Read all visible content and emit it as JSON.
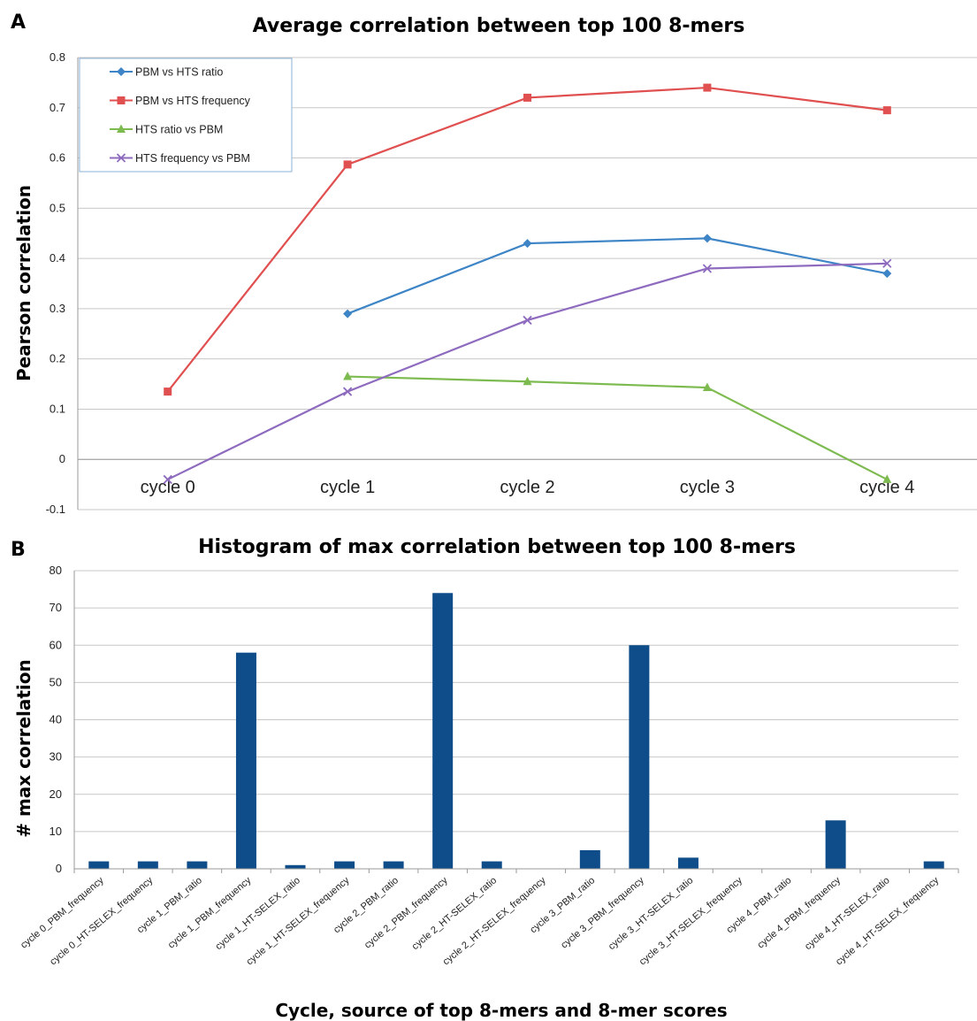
{
  "chart_data": [
    {
      "panel": "A",
      "type": "line",
      "title": "Average correlation between top 100 8-mers",
      "xlabel": "",
      "ylabel": "Pearson correlation",
      "categories": [
        "cycle 0",
        "cycle 1",
        "cycle 2",
        "cycle 3",
        "cycle 4"
      ],
      "ylim": [
        -0.1,
        0.8
      ],
      "yticks": [
        "-0.1",
        "0",
        "0.1",
        "0.2",
        "0.3",
        "0.4",
        "0.5",
        "0.6",
        "0.7",
        "0.8"
      ],
      "grid": true,
      "legend": "top-left",
      "series": [
        {
          "name": "PBM vs HTS ratio",
          "color": "#3d85c6",
          "marker": "diamond",
          "values": [
            null,
            0.29,
            0.43,
            0.44,
            0.37
          ]
        },
        {
          "name": "PBM vs HTS frequency",
          "color": "#e05050",
          "marker": "square",
          "values": [
            0.135,
            0.587,
            0.72,
            0.74,
            0.695
          ]
        },
        {
          "name": "HTS ratio vs PBM",
          "color": "#7dbb50",
          "marker": "triangle",
          "values": [
            null,
            0.165,
            0.155,
            0.143,
            -0.04
          ]
        },
        {
          "name": "HTS frequency vs PBM",
          "color": "#8e6bbf",
          "marker": "x",
          "values": [
            -0.04,
            0.135,
            0.277,
            0.38,
            0.39
          ]
        }
      ]
    },
    {
      "panel": "B",
      "type": "bar",
      "title": "Histogram of max correlation between top 100 8-mers",
      "xlabel": "Cycle, source of top 8-mers and 8-mer scores",
      "ylabel": "# max correlation",
      "ylim": [
        0,
        80
      ],
      "yticks": [
        "0",
        "10",
        "20",
        "30",
        "40",
        "50",
        "60",
        "70",
        "80"
      ],
      "grid": true,
      "color": "#0f4d8a",
      "categories": [
        "cycle 0_PBM_frequency",
        "cycle 0_HT-SELEX_frequency",
        "cycle 1_PBM_ratio",
        "cycle 1_PBM_frequency",
        "cycle 1_HT-SELEX_ratio",
        "cycle 1_HT-SELEX_frequency",
        "cycle 2_PBM_ratio",
        "cycle 2_PBM_frequency",
        "cycle 2_HT-SELEX_ratio",
        "cycle 2_HT-SELEX_frequency",
        "cycle 3_PBM_ratio",
        "cycle 3_PBM_frequency",
        "cycle 3_HT-SELEX_ratio",
        "cycle 3_HT-SELEX_frequency",
        "cycle 4_PBM_ratio",
        "cycle 4_PBM_frequency",
        "cycle 4_HT-SELEX_ratio",
        "cycle 4_HT-SELEX_frequency"
      ],
      "values": [
        2,
        2,
        2,
        58,
        1,
        2,
        2,
        74,
        2,
        0,
        5,
        60,
        3,
        0,
        0,
        13,
        0,
        2
      ]
    }
  ]
}
